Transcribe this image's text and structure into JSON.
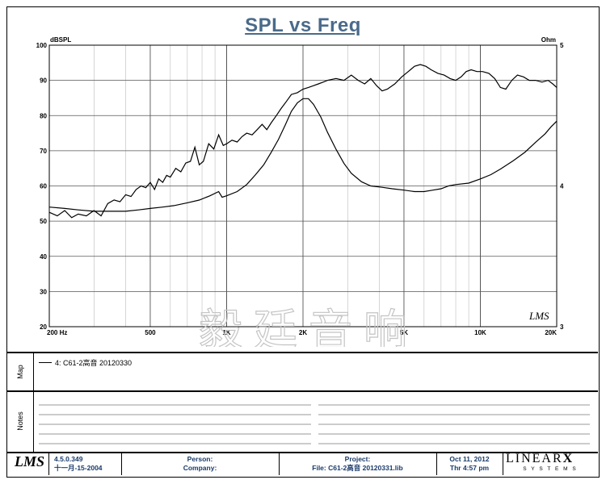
{
  "title": "SPL vs Freq",
  "chart_data": {
    "type": "line",
    "title": "SPL vs Freq",
    "xscale": "log",
    "xlim": [
      200,
      20000
    ],
    "ylabel": "dBSPL",
    "ylim": [
      20,
      100
    ],
    "y_ticks": [
      "100",
      "90",
      "80",
      "70",
      "60",
      "50",
      "40",
      "30",
      "20"
    ],
    "y2label": "Ohm",
    "y2lim": [
      3,
      5
    ],
    "y2_ticks": [
      "5",
      "4",
      "3"
    ],
    "x_ticks": [
      {
        "value": 200,
        "label": "200  Hz"
      },
      {
        "value": 500,
        "label": "500"
      },
      {
        "value": 1000,
        "label": "1K"
      },
      {
        "value": 2000,
        "label": "2K"
      },
      {
        "value": 5000,
        "label": "5K"
      },
      {
        "value": 10000,
        "label": "10K"
      },
      {
        "value": 20000,
        "label": "20K"
      }
    ],
    "series": [
      {
        "name": "SPL",
        "axis": "left",
        "points": [
          [
            200,
            52.5
          ],
          [
            215,
            51.5
          ],
          [
            230,
            53
          ],
          [
            245,
            51
          ],
          [
            260,
            52
          ],
          [
            280,
            51.5
          ],
          [
            300,
            53
          ],
          [
            320,
            51.5
          ],
          [
            340,
            55
          ],
          [
            360,
            56
          ],
          [
            380,
            55.5
          ],
          [
            400,
            57.5
          ],
          [
            420,
            57
          ],
          [
            440,
            59
          ],
          [
            460,
            60
          ],
          [
            480,
            59.5
          ],
          [
            500,
            61
          ],
          [
            520,
            59
          ],
          [
            540,
            62
          ],
          [
            560,
            61
          ],
          [
            580,
            63
          ],
          [
            600,
            62.5
          ],
          [
            630,
            65
          ],
          [
            660,
            64
          ],
          [
            690,
            66.5
          ],
          [
            720,
            67
          ],
          [
            750,
            71
          ],
          [
            780,
            66
          ],
          [
            810,
            67
          ],
          [
            850,
            72
          ],
          [
            890,
            70.5
          ],
          [
            930,
            74.5
          ],
          [
            970,
            71.5
          ],
          [
            1000,
            72
          ],
          [
            1050,
            73
          ],
          [
            1100,
            72.5
          ],
          [
            1150,
            74
          ],
          [
            1200,
            75
          ],
          [
            1260,
            74.5
          ],
          [
            1320,
            76
          ],
          [
            1380,
            77.5
          ],
          [
            1440,
            76
          ],
          [
            1500,
            78
          ],
          [
            1570,
            80
          ],
          [
            1640,
            82
          ],
          [
            1720,
            84
          ],
          [
            1800,
            86
          ],
          [
            1900,
            86.5
          ],
          [
            2000,
            87.5
          ],
          [
            2100,
            88
          ],
          [
            2200,
            88.5
          ],
          [
            2300,
            89
          ],
          [
            2400,
            89.5
          ],
          [
            2500,
            90
          ],
          [
            2700,
            90.5
          ],
          [
            2900,
            90
          ],
          [
            3100,
            91.5
          ],
          [
            3300,
            90
          ],
          [
            3500,
            89
          ],
          [
            3700,
            90.5
          ],
          [
            3900,
            88.5
          ],
          [
            4100,
            87
          ],
          [
            4300,
            87.5
          ],
          [
            4600,
            89
          ],
          [
            4900,
            91
          ],
          [
            5200,
            92.5
          ],
          [
            5500,
            94
          ],
          [
            5800,
            94.5
          ],
          [
            6100,
            94
          ],
          [
            6400,
            93
          ],
          [
            6800,
            92
          ],
          [
            7200,
            91.5
          ],
          [
            7600,
            90.5
          ],
          [
            8000,
            90
          ],
          [
            8400,
            91
          ],
          [
            8800,
            92.5
          ],
          [
            9200,
            93
          ],
          [
            9700,
            92.5
          ],
          [
            10200,
            92.5
          ],
          [
            10800,
            92
          ],
          [
            11400,
            90.5
          ],
          [
            12000,
            88
          ],
          [
            12600,
            87.5
          ],
          [
            13300,
            90
          ],
          [
            14000,
            91.5
          ],
          [
            14800,
            91
          ],
          [
            15600,
            90
          ],
          [
            16500,
            90
          ],
          [
            17500,
            89.5
          ],
          [
            18500,
            90
          ],
          [
            19300,
            89
          ],
          [
            20000,
            88
          ]
        ]
      },
      {
        "name": "Impedance",
        "axis": "right",
        "points": [
          [
            200,
            3.85
          ],
          [
            230,
            3.84
          ],
          [
            260,
            3.83
          ],
          [
            300,
            3.82
          ],
          [
            350,
            3.82
          ],
          [
            400,
            3.82
          ],
          [
            450,
            3.83
          ],
          [
            500,
            3.84
          ],
          [
            560,
            3.85
          ],
          [
            620,
            3.86
          ],
          [
            700,
            3.88
          ],
          [
            780,
            3.9
          ],
          [
            860,
            3.93
          ],
          [
            930,
            3.96
          ],
          [
            960,
            3.92
          ],
          [
            1000,
            3.93
          ],
          [
            1100,
            3.96
          ],
          [
            1200,
            4.01
          ],
          [
            1300,
            4.08
          ],
          [
            1400,
            4.15
          ],
          [
            1500,
            4.24
          ],
          [
            1600,
            4.33
          ],
          [
            1700,
            4.43
          ],
          [
            1800,
            4.53
          ],
          [
            1900,
            4.59
          ],
          [
            2000,
            4.62
          ],
          [
            2100,
            4.62
          ],
          [
            2200,
            4.58
          ],
          [
            2350,
            4.49
          ],
          [
            2500,
            4.38
          ],
          [
            2700,
            4.26
          ],
          [
            2900,
            4.16
          ],
          [
            3100,
            4.09
          ],
          [
            3400,
            4.03
          ],
          [
            3700,
            4.0
          ],
          [
            4100,
            3.99
          ],
          [
            4500,
            3.98
          ],
          [
            5000,
            3.97
          ],
          [
            5500,
            3.96
          ],
          [
            6000,
            3.96
          ],
          [
            6500,
            3.97
          ],
          [
            7000,
            3.98
          ],
          [
            7500,
            4.0
          ],
          [
            8000,
            4.01
          ],
          [
            9000,
            4.02
          ],
          [
            10000,
            4.05
          ],
          [
            11000,
            4.08
          ],
          [
            12000,
            4.12
          ],
          [
            13500,
            4.18
          ],
          [
            15000,
            4.24
          ],
          [
            16500,
            4.31
          ],
          [
            18000,
            4.37
          ],
          [
            19000,
            4.42
          ],
          [
            20000,
            4.46
          ]
        ]
      }
    ]
  },
  "watermark": "毅廷音响",
  "chart_signature": "LMS",
  "side_labels": {
    "map": "Map",
    "notes": "Notes"
  },
  "legend": {
    "entry": "4: C61-2高音  20120330"
  },
  "footer": {
    "logo": "LMS",
    "version": "4.5.0.349",
    "version_date": "十一月-15-2004",
    "person_label": "Person:",
    "company_label": "Company:",
    "project_label": "Project:",
    "file_label": "File: C61-2高音 20120331.lib",
    "date": "Oct 11, 2012",
    "time": "Thr  4:57 pm",
    "brand": "LINEAR",
    "brand_x": "X",
    "brand_sub": "S Y S T E M S"
  }
}
